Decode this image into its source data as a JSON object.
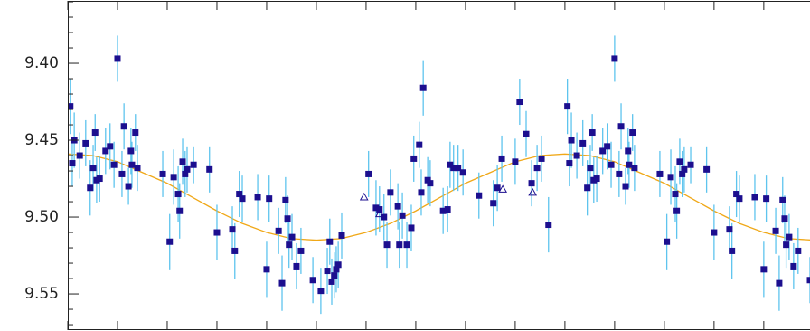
{
  "chart_data": {
    "type": "scatter",
    "xlim": [
      0,
      1.493
    ],
    "ylim": [
      9.5735,
      9.3594
    ],
    "y_inverted": true,
    "xticks": [
      0,
      0.1,
      0.2,
      0.3,
      0.4,
      0.5,
      0.6,
      0.7,
      0.8,
      0.9,
      1.0,
      1.1,
      1.2,
      1.3,
      1.4
    ],
    "yticks": [
      {
        "value": 9.4,
        "label": "9.40"
      },
      {
        "value": 9.45,
        "label": "9.45"
      },
      {
        "value": 9.5,
        "label": "9.50"
      },
      {
        "value": 9.55,
        "label": "9.55"
      }
    ],
    "yminor_ticks": [
      9.36,
      9.37,
      9.38,
      9.39,
      9.41,
      9.42,
      9.43,
      9.44,
      9.46,
      9.47,
      9.48,
      9.49,
      9.51,
      9.52,
      9.53,
      9.54,
      9.56,
      9.57
    ],
    "series": [
      {
        "marker": "square",
        "color": "#1c0f8f",
        "error_color": "#5ec4ee",
        "x": [
          0.005,
          0.009,
          0.013,
          0.024,
          0.036,
          0.045,
          0.051,
          0.055,
          0.058,
          0.064,
          0.076,
          0.085,
          0.093,
          0.1,
          0.109,
          0.113,
          0.122,
          0.127,
          0.129,
          0.136,
          0.14,
          0.191,
          0.205,
          0.213,
          0.222,
          0.225,
          0.231,
          0.236,
          0.24,
          0.253,
          0.285,
          0.3,
          0.331,
          0.336,
          0.345,
          0.351,
          0.382,
          0.4,
          0.405,
          0.424,
          0.431,
          0.438,
          0.442,
          0.445,
          0.451,
          0.46,
          0.469,
          0.493,
          0.509,
          0.522,
          0.527,
          0.531,
          0.536,
          0.54,
          0.544,
          0.551,
          0.605,
          0.62,
          0.627,
          0.636,
          0.642,
          0.649,
          0.664,
          0.667,
          0.673,
          0.682,
          0.691,
          0.696,
          0.707,
          0.711,
          0.715,
          0.724,
          0.729,
          0.755,
          0.764,
          0.769,
          0.776,
          0.785,
          0.795,
          0.827,
          0.856,
          0.864,
          0.873,
          0.9,
          0.909,
          0.922,
          0.933,
          0.944,
          0.953,
          0.967,
          1.005,
          1.009,
          1.013,
          1.024,
          1.036,
          1.045,
          1.051,
          1.055,
          1.058,
          1.064,
          1.076,
          1.085,
          1.093,
          1.1,
          1.109,
          1.113,
          1.122,
          1.127,
          1.129,
          1.136,
          1.14,
          1.191,
          1.205,
          1.213,
          1.222,
          1.225,
          1.231,
          1.236,
          1.24,
          1.253,
          1.285,
          1.3,
          1.331,
          1.336,
          1.345,
          1.351,
          1.382,
          1.4,
          1.405,
          1.424,
          1.431,
          1.438,
          1.442,
          1.445,
          1.451,
          1.46,
          1.469,
          1.493
        ],
        "values": [
          9.428,
          9.465,
          9.45,
          9.46,
          9.452,
          9.481,
          9.468,
          9.445,
          9.476,
          9.475,
          9.457,
          9.454,
          9.466,
          9.397,
          9.472,
          9.441,
          9.48,
          9.457,
          9.466,
          9.445,
          9.468,
          9.472,
          9.516,
          9.474,
          9.485,
          9.496,
          9.464,
          9.472,
          9.469,
          9.466,
          9.469,
          9.51,
          9.508,
          9.522,
          9.485,
          9.488,
          9.487,
          9.534,
          9.488,
          9.509,
          9.543,
          9.489,
          9.501,
          9.518,
          9.513,
          9.532,
          9.522,
          9.541,
          9.548,
          9.535,
          9.516,
          9.542,
          9.538,
          9.534,
          9.531,
          9.512,
          9.472,
          9.494,
          9.495,
          9.5,
          9.518,
          9.484,
          9.493,
          9.518,
          9.499,
          9.518,
          9.507,
          9.462,
          9.453,
          9.484,
          9.416,
          9.476,
          9.478,
          9.496,
          9.495,
          9.466,
          9.468,
          9.468,
          9.471,
          9.486,
          9.491,
          9.481,
          9.462,
          9.464,
          9.425,
          9.446,
          9.478,
          9.468,
          9.462,
          9.505,
          9.428,
          9.465,
          9.45,
          9.46,
          9.452,
          9.481,
          9.468,
          9.445,
          9.476,
          9.475,
          9.457,
          9.454,
          9.466,
          9.397,
          9.472,
          9.441,
          9.48,
          9.457,
          9.466,
          9.445,
          9.468,
          9.472,
          9.516,
          9.474,
          9.485,
          9.496,
          9.464,
          9.472,
          9.469,
          9.466,
          9.469,
          9.51,
          9.508,
          9.522,
          9.485,
          9.488,
          9.487,
          9.534,
          9.488,
          9.509,
          9.543,
          9.489,
          9.501,
          9.518,
          9.513,
          9.532,
          9.522,
          9.541
        ],
        "errors": [
          0.018,
          0.015,
          0.018,
          0.015,
          0.015,
          0.018,
          0.015,
          0.012,
          0.015,
          0.015,
          0.015,
          0.015,
          0.015,
          0.015,
          0.015,
          0.015,
          0.012,
          0.015,
          0.015,
          0.012,
          0.015,
          0.015,
          0.018,
          0.018,
          0.018,
          0.018,
          0.015,
          0.015,
          0.015,
          0.012,
          0.015,
          0.018,
          0.015,
          0.018,
          0.015,
          0.015,
          0.015,
          0.018,
          0.015,
          0.015,
          0.018,
          0.015,
          0.015,
          0.015,
          0.015,
          0.015,
          0.015,
          0.015,
          0.015,
          0.015,
          0.015,
          0.015,
          0.015,
          0.015,
          0.015,
          0.015,
          0.015,
          0.018,
          0.015,
          0.015,
          0.015,
          0.015,
          0.015,
          0.015,
          0.015,
          0.015,
          0.015,
          0.015,
          0.015,
          0.015,
          0.018,
          0.015,
          0.015,
          0.015,
          0.015,
          0.015,
          0.015,
          0.015,
          0.015,
          0.015,
          0.015,
          0.015,
          0.015,
          0.015,
          0.015,
          0.015,
          0.015,
          0.015,
          0.015,
          0.018,
          0.018,
          0.015,
          0.018,
          0.015,
          0.015,
          0.018,
          0.015,
          0.012,
          0.015,
          0.015,
          0.015,
          0.015,
          0.015,
          0.015,
          0.015,
          0.015,
          0.012,
          0.015,
          0.015,
          0.012,
          0.015,
          0.015,
          0.018,
          0.018,
          0.018,
          0.018,
          0.015,
          0.015,
          0.015,
          0.012,
          0.015,
          0.018,
          0.015,
          0.018,
          0.015,
          0.015,
          0.015,
          0.018,
          0.015,
          0.015,
          0.018,
          0.015,
          0.015,
          0.015,
          0.015,
          0.015,
          0.015,
          0.015
        ]
      },
      {
        "marker": "triangle",
        "color": "#1c0f8f",
        "x": [
          0.596,
          0.627,
          0.875,
          0.935
        ],
        "values": [
          9.487,
          9.498,
          9.482,
          9.484
        ]
      },
      {
        "marker": "line",
        "color": "#f0a818",
        "x": [
          0,
          0.05,
          0.1,
          0.15,
          0.2,
          0.25,
          0.3,
          0.35,
          0.4,
          0.45,
          0.5,
          0.55,
          0.6,
          0.65,
          0.7,
          0.75,
          0.8,
          0.85,
          0.9,
          0.95,
          1.0,
          1.05,
          1.1,
          1.15,
          1.2,
          1.25,
          1.3,
          1.35,
          1.4,
          1.45,
          1.5
        ],
        "values": [
          9.459,
          9.46,
          9.464,
          9.471,
          9.478,
          9.487,
          9.496,
          9.504,
          9.51,
          9.514,
          9.515,
          9.514,
          9.51,
          9.504,
          9.496,
          9.487,
          9.478,
          9.471,
          9.464,
          9.46,
          9.459,
          9.46,
          9.464,
          9.471,
          9.478,
          9.487,
          9.496,
          9.504,
          9.51,
          9.514,
          9.515
        ]
      }
    ]
  }
}
